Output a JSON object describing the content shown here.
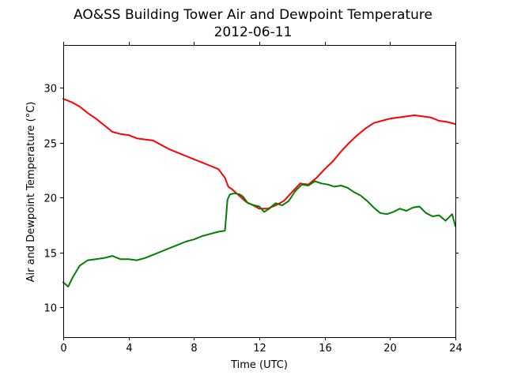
{
  "chart_data": {
    "type": "line",
    "title": "AO&SS Building Tower Air and Dewpoint Temperature",
    "subtitle": "2012-06-11",
    "xlabel": "Time (UTC)",
    "ylabel": "Air and Dewpoint Temperature (°C)",
    "xlim": [
      0,
      24
    ],
    "ylim": [
      7.3,
      33.9
    ],
    "xticks": [
      0,
      4,
      8,
      12,
      16,
      20,
      24
    ],
    "yticks": [
      10,
      15,
      20,
      25,
      30
    ],
    "grid": false,
    "legend": "none",
    "series": [
      {
        "color": "#ff0000",
        "x": [
          0,
          0.5,
          1,
          1.5,
          2,
          2.5,
          3,
          3.5,
          4,
          4.5,
          5,
          5.5,
          6,
          6.5,
          7,
          7.5,
          8,
          8.5,
          9,
          9.5,
          9.9,
          10.1,
          10.3,
          10.6,
          10.9,
          11.2,
          11.5,
          12,
          12.5,
          13,
          13.5,
          14,
          14.5,
          15,
          15.5,
          16,
          16.5,
          17,
          17.5,
          18,
          18.5,
          19,
          19.5,
          20,
          20.5,
          21,
          21.5,
          22,
          22.5,
          23,
          23.5,
          24
        ],
        "values": [
          29.0,
          28.7,
          28.3,
          27.7,
          27.2,
          26.6,
          26.0,
          25.8,
          25.7,
          25.4,
          25.3,
          25.2,
          24.8,
          24.4,
          24.1,
          23.8,
          23.5,
          23.2,
          22.9,
          22.6,
          21.8,
          21.0,
          20.8,
          20.4,
          20.0,
          19.6,
          19.4,
          19.0,
          19.0,
          19.3,
          19.7,
          20.5,
          21.3,
          21.2,
          21.8,
          22.6,
          23.3,
          24.2,
          25.0,
          25.7,
          26.3,
          26.8,
          27.0,
          27.2,
          27.3,
          27.4,
          27.5,
          27.4,
          27.3,
          27.0,
          26.9,
          26.7
        ]
      },
      {
        "color": "#008000",
        "x": [
          0,
          0.3,
          0.6,
          1,
          1.5,
          2,
          2.5,
          3,
          3.5,
          4,
          4.5,
          5,
          5.5,
          6,
          6.5,
          7,
          7.5,
          8,
          8.5,
          9,
          9.5,
          9.9,
          10.05,
          10.2,
          10.5,
          10.8,
          11,
          11.3,
          11.7,
          12,
          12.3,
          12.6,
          13,
          13.4,
          13.8,
          14.2,
          14.6,
          15,
          15.4,
          15.8,
          16.2,
          16.6,
          17,
          17.4,
          17.8,
          18.2,
          18.6,
          19,
          19.4,
          19.8,
          20.2,
          20.6,
          21,
          21.4,
          21.8,
          22.2,
          22.6,
          23,
          23.4,
          23.8,
          24
        ],
        "values": [
          12.3,
          11.9,
          12.8,
          13.8,
          14.3,
          14.4,
          14.5,
          14.7,
          14.4,
          14.4,
          14.3,
          14.5,
          14.8,
          15.1,
          15.4,
          15.7,
          16.0,
          16.2,
          16.5,
          16.7,
          16.9,
          17.0,
          19.8,
          20.3,
          20.4,
          20.3,
          20.1,
          19.5,
          19.3,
          19.2,
          18.7,
          19.0,
          19.5,
          19.3,
          19.7,
          20.6,
          21.2,
          21.1,
          21.5,
          21.3,
          21.2,
          21.0,
          21.1,
          20.9,
          20.5,
          20.2,
          19.7,
          19.1,
          18.6,
          18.5,
          18.7,
          19.0,
          18.8,
          19.1,
          19.2,
          18.6,
          18.3,
          18.4,
          17.9,
          18.5,
          17.4
        ]
      }
    ]
  }
}
